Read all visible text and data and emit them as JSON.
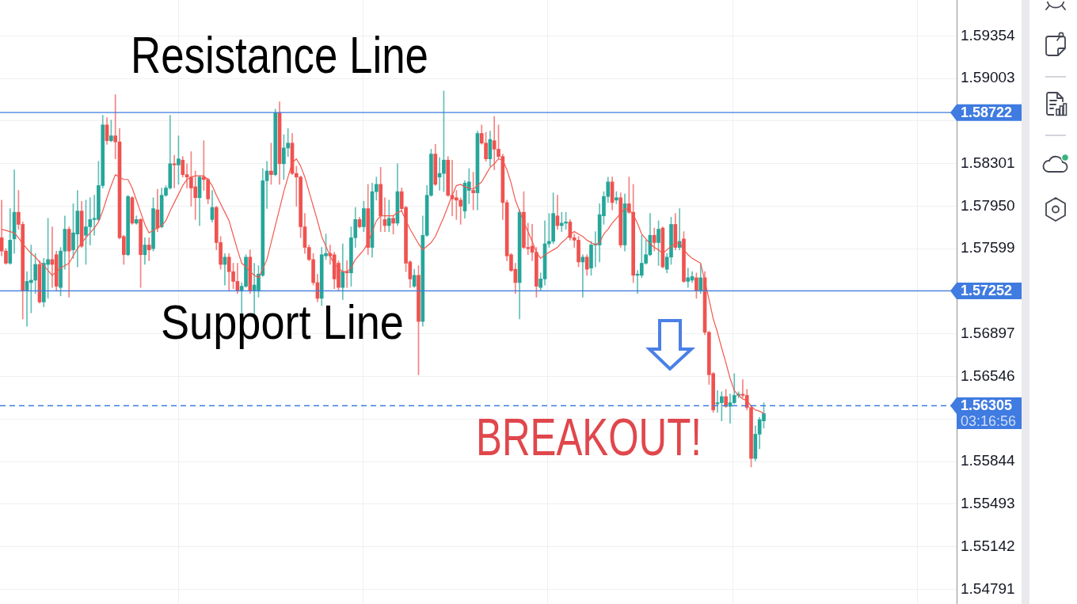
{
  "chart_data": {
    "type": "candlestick",
    "categories": [
      null,
      null,
      null,
      null,
      null,
      null,
      null,
      null,
      null,
      null,
      null,
      null,
      null,
      null,
      null,
      null,
      null,
      null,
      null,
      null,
      null,
      null,
      null,
      null,
      null,
      null,
      null,
      null,
      null,
      null,
      null,
      null,
      null,
      null,
      null,
      null,
      null,
      null,
      null,
      null,
      null,
      null,
      null,
      null,
      null,
      null,
      null,
      null,
      null,
      null,
      null,
      null,
      null,
      null,
      null,
      null,
      null,
      null,
      null,
      null,
      null,
      null,
      null,
      null,
      null,
      null,
      null,
      null,
      null,
      null,
      null,
      null,
      null,
      null,
      null,
      null,
      null,
      null,
      null,
      null,
      null,
      null,
      null,
      null,
      null,
      null,
      null,
      null,
      null,
      null,
      null,
      null,
      null,
      null,
      null,
      null,
      null,
      null,
      null,
      null,
      null,
      null,
      null,
      null,
      null,
      null,
      null,
      null,
      null,
      null,
      null,
      null,
      null,
      null,
      null,
      null,
      null,
      null,
      null,
      null,
      null,
      null,
      null,
      null,
      null,
      null,
      null,
      null,
      null,
      null,
      null,
      null,
      null,
      null,
      null,
      null,
      null,
      null,
      null,
      null,
      null,
      null,
      null,
      null,
      null,
      null,
      null,
      null,
      null,
      null,
      null,
      null,
      null,
      null,
      null,
      null,
      null,
      null,
      null,
      null,
      null,
      null,
      null,
      null,
      null,
      null,
      null,
      null,
      null,
      null,
      null,
      null,
      null,
      null,
      null,
      null,
      null,
      null,
      null,
      null,
      null,
      null
    ],
    "ohlc": [
      [
        1.5769,
        1.58,
        1.5754,
        1.5758
      ],
      [
        1.5758,
        1.576,
        1.5747,
        1.5748
      ],
      [
        1.5748,
        1.5793,
        1.5747,
        1.5767
      ],
      [
        1.5768,
        1.5825,
        1.5756,
        1.579
      ],
      [
        1.579,
        1.5808,
        1.5776,
        1.578
      ],
      [
        1.578,
        1.5782,
        1.5702,
        1.5725
      ],
      [
        1.5725,
        1.5741,
        1.5696,
        1.5733
      ],
      [
        1.5732,
        1.5763,
        1.5707,
        1.5734
      ],
      [
        1.5734,
        1.5756,
        1.5723,
        1.5747
      ],
      [
        1.5747,
        1.575,
        1.5715,
        1.5716
      ],
      [
        1.5716,
        1.5752,
        1.5712,
        1.5748
      ],
      [
        1.5747,
        1.5785,
        1.5719,
        1.5751
      ],
      [
        1.5751,
        1.5778,
        1.5728,
        1.5747
      ],
      [
        1.5755,
        1.5758,
        1.5725,
        1.5729
      ],
      [
        1.5728,
        1.5761,
        1.5721,
        1.5758
      ],
      [
        1.5758,
        1.5787,
        1.5743,
        1.5776
      ],
      [
        1.5776,
        1.5778,
        1.572,
        1.5758
      ],
      [
        1.5759,
        1.5797,
        1.5752,
        1.5773
      ],
      [
        1.5772,
        1.5808,
        1.5745,
        1.5791
      ],
      [
        1.5791,
        1.5799,
        1.5761,
        1.5762
      ],
      [
        1.5771,
        1.58,
        1.5747,
        1.5778
      ],
      [
        1.5778,
        1.5802,
        1.5763,
        1.5784
      ],
      [
        1.5784,
        1.5804,
        1.5771,
        1.5785
      ],
      [
        1.5784,
        1.5832,
        1.5783,
        1.5812
      ],
      [
        1.5812,
        1.587,
        1.581,
        1.5862
      ],
      [
        1.5862,
        1.5868,
        1.5846,
        1.5849
      ],
      [
        1.5849,
        1.5866,
        1.5848,
        1.5853
      ],
      [
        1.5853,
        1.5887,
        1.5834,
        1.5848
      ],
      [
        1.5848,
        1.5859,
        1.5768,
        1.5769
      ],
      [
        1.577,
        1.5771,
        1.5747,
        1.5755
      ],
      [
        1.5755,
        1.5804,
        1.5754,
        1.5803
      ],
      [
        1.5802,
        1.5803,
        1.578,
        1.5781
      ],
      [
        1.5781,
        1.5787,
        1.578,
        1.5784
      ],
      [
        1.5784,
        1.5785,
        1.5728,
        1.5755
      ],
      [
        1.5755,
        1.5769,
        1.5747,
        1.5763
      ],
      [
        1.5763,
        1.5769,
        1.575,
        1.5759
      ],
      [
        1.576,
        1.5802,
        1.5758,
        1.5793
      ],
      [
        1.5792,
        1.5809,
        1.5774,
        1.5777
      ],
      [
        1.5778,
        1.581,
        1.5777,
        1.5804
      ],
      [
        1.5804,
        1.5812,
        1.5803,
        1.581
      ],
      [
        1.581,
        1.587,
        1.5809,
        1.583
      ],
      [
        1.583,
        1.5837,
        1.581,
        1.5829
      ],
      [
        1.5829,
        1.5853,
        1.5813,
        1.5834
      ],
      [
        1.5833,
        1.5836,
        1.5819,
        1.5821
      ],
      [
        1.5821,
        1.583,
        1.581,
        1.5819
      ],
      [
        1.5819,
        1.584,
        1.5795,
        1.581
      ],
      [
        1.5811,
        1.5824,
        1.5784,
        1.5802
      ],
      [
        1.5802,
        1.582,
        1.5779,
        1.5819
      ],
      [
        1.5819,
        1.5849,
        1.5808,
        1.5817
      ],
      [
        1.5817,
        1.5818,
        1.5797,
        1.5801
      ],
      [
        1.5784,
        1.5808,
        1.5782,
        1.5794
      ],
      [
        1.5794,
        1.5795,
        1.5759,
        1.5765
      ],
      [
        1.5765,
        1.577,
        1.5743,
        1.5747
      ],
      [
        1.5747,
        1.5756,
        1.573,
        1.5753
      ],
      [
        1.5753,
        1.5756,
        1.5725,
        1.5741
      ],
      [
        1.5741,
        1.5748,
        1.5727,
        1.5733
      ],
      [
        1.5733,
        1.5748,
        1.5723,
        1.5725
      ],
      [
        1.5725,
        1.5732,
        1.5706,
        1.5729
      ],
      [
        1.5729,
        1.5755,
        1.5728,
        1.5753
      ],
      [
        1.5753,
        1.5759,
        1.5723,
        1.5725
      ],
      [
        1.5725,
        1.5748,
        1.5706,
        1.573
      ],
      [
        1.5725,
        1.5746,
        1.572,
        1.5739
      ],
      [
        1.5738,
        1.5826,
        1.5737,
        1.5816
      ],
      [
        1.5816,
        1.5832,
        1.5793,
        1.5824
      ],
      [
        1.5824,
        1.5847,
        1.5813,
        1.5821
      ],
      [
        1.5821,
        1.5875,
        1.582,
        1.5872
      ],
      [
        1.5872,
        1.5881,
        1.5813,
        1.583
      ],
      [
        1.583,
        1.5854,
        1.5817,
        1.5843
      ],
      [
        1.5843,
        1.5859,
        1.5836,
        1.5847
      ],
      [
        1.5847,
        1.5855,
        1.5821,
        1.5822
      ],
      [
        1.5822,
        1.5828,
        1.5795,
        1.5819
      ],
      [
        1.5819,
        1.582,
        1.5769,
        1.5778
      ],
      [
        1.5778,
        1.5789,
        1.5756,
        1.5761
      ],
      [
        1.5761,
        1.5763,
        1.575,
        1.5751
      ],
      [
        1.5751,
        1.5756,
        1.573,
        1.5732
      ],
      [
        1.5732,
        1.5739,
        1.5716,
        1.5719
      ],
      [
        1.5719,
        1.5761,
        1.5713,
        1.5755
      ],
      [
        1.5754,
        1.5772,
        1.5751,
        1.5756
      ],
      [
        1.5756,
        1.5763,
        1.5747,
        1.5754
      ],
      [
        1.5755,
        1.5757,
        1.5727,
        1.5735
      ],
      [
        1.5748,
        1.575,
        1.5725,
        1.5728
      ],
      [
        1.5728,
        1.5764,
        1.5718,
        1.5741
      ],
      [
        1.5741,
        1.575,
        1.5728,
        1.574
      ],
      [
        1.574,
        1.5778,
        1.5729,
        1.5769
      ],
      [
        1.5769,
        1.5794,
        1.5761,
        1.5784
      ],
      [
        1.5784,
        1.5786,
        1.5777,
        1.5778
      ],
      [
        1.5778,
        1.5799,
        1.5774,
        1.5793
      ],
      [
        1.5793,
        1.5813,
        1.5755,
        1.5761
      ],
      [
        1.5761,
        1.5814,
        1.5753,
        1.5807
      ],
      [
        1.5807,
        1.5819,
        1.58,
        1.5813
      ],
      [
        1.5813,
        1.5827,
        1.5774,
        1.5787
      ],
      [
        1.5784,
        1.5802,
        1.5774,
        1.5779
      ],
      [
        1.5779,
        1.58,
        1.5774,
        1.5785
      ],
      [
        1.5785,
        1.5787,
        1.5772,
        1.5781
      ],
      [
        1.5781,
        1.583,
        1.5779,
        1.5807
      ],
      [
        1.5807,
        1.581,
        1.5791,
        1.5793
      ],
      [
        1.5794,
        1.5795,
        1.5741,
        1.5748
      ],
      [
        1.5749,
        1.575,
        1.5728,
        1.5735
      ],
      [
        1.5729,
        1.5743,
        1.5728,
        1.5738
      ],
      [
        1.5738,
        1.5746,
        1.5656,
        1.57
      ],
      [
        1.57,
        1.5787,
        1.5696,
        1.5771
      ],
      [
        1.5771,
        1.5812,
        1.577,
        1.5804
      ],
      [
        1.5804,
        1.5842,
        1.5803,
        1.5838
      ],
      [
        1.5838,
        1.5846,
        1.5812,
        1.5813
      ],
      [
        1.5819,
        1.5835,
        1.5808,
        1.5822
      ],
      [
        1.5822,
        1.589,
        1.5807,
        1.5833
      ],
      [
        1.5833,
        1.5836,
        1.5803,
        1.5804
      ],
      [
        1.5804,
        1.5833,
        1.5787,
        1.5801
      ],
      [
        1.5802,
        1.5808,
        1.5784,
        1.58
      ],
      [
        1.58,
        1.5802,
        1.578,
        1.5795
      ],
      [
        1.5791,
        1.5816,
        1.5785,
        1.5814
      ],
      [
        1.5808,
        1.5826,
        1.5797,
        1.5815
      ],
      [
        1.5808,
        1.5823,
        1.5792,
        1.5806
      ],
      [
        1.5806,
        1.5857,
        1.5792,
        1.5855
      ],
      [
        1.5855,
        1.5862,
        1.5846,
        1.5847
      ],
      [
        1.5847,
        1.5856,
        1.5832,
        1.5834
      ],
      [
        1.5834,
        1.5857,
        1.5828,
        1.585
      ],
      [
        1.5849,
        1.5869,
        1.5825,
        1.5842
      ],
      [
        1.5842,
        1.5862,
        1.5834,
        1.5836
      ],
      [
        1.5836,
        1.5838,
        1.5784,
        1.5798
      ],
      [
        1.5798,
        1.58,
        1.575,
        1.5754
      ],
      [
        1.5755,
        1.5756,
        1.5741,
        1.5742
      ],
      [
        1.5743,
        1.5748,
        1.5723,
        1.5732
      ],
      [
        1.5732,
        1.5792,
        1.5702,
        1.579
      ],
      [
        1.579,
        1.5807,
        1.576,
        1.5761
      ],
      [
        1.5761,
        1.5781,
        1.5755,
        1.576
      ],
      [
        1.5762,
        1.578,
        1.575,
        1.5757
      ],
      [
        1.5757,
        1.5761,
        1.572,
        1.5729
      ],
      [
        1.5728,
        1.574,
        1.5725,
        1.5735
      ],
      [
        1.5735,
        1.5783,
        1.573,
        1.5764
      ],
      [
        1.5764,
        1.5789,
        1.5761,
        1.5766
      ],
      [
        1.5766,
        1.5806,
        1.5764,
        1.5789
      ],
      [
        1.5787,
        1.5804,
        1.5776,
        1.5779
      ],
      [
        1.5779,
        1.579,
        1.5774,
        1.5781
      ],
      [
        1.5781,
        1.579,
        1.5776,
        1.5782
      ],
      [
        1.5782,
        1.5784,
        1.5767,
        1.5769
      ],
      [
        1.5769,
        1.5772,
        1.5761,
        1.5767
      ],
      [
        1.5767,
        1.577,
        1.5745,
        1.5749
      ],
      [
        1.5749,
        1.5755,
        1.572,
        1.5753
      ],
      [
        1.5753,
        1.5755,
        1.5738,
        1.5743
      ],
      [
        1.5744,
        1.5766,
        1.5738,
        1.5763
      ],
      [
        1.5763,
        1.5774,
        1.5745,
        1.5764
      ],
      [
        1.5763,
        1.5797,
        1.5749,
        1.5788
      ],
      [
        1.5787,
        1.5807,
        1.578,
        1.5803
      ],
      [
        1.5803,
        1.5819,
        1.5798,
        1.5815
      ],
      [
        1.5815,
        1.5819,
        1.5792,
        1.5798
      ],
      [
        1.58,
        1.5807,
        1.5797,
        1.5802
      ],
      [
        1.5802,
        1.5806,
        1.5761,
        1.5763
      ],
      [
        1.5763,
        1.5805,
        1.5758,
        1.5797
      ],
      [
        1.5797,
        1.5819,
        1.5789,
        1.579
      ],
      [
        1.579,
        1.5813,
        1.5732,
        1.5738
      ],
      [
        1.5738,
        1.5742,
        1.5723,
        1.5739
      ],
      [
        1.5738,
        1.5771,
        1.5736,
        1.5748
      ],
      [
        1.5748,
        1.5767,
        1.5747,
        1.5755
      ],
      [
        1.5755,
        1.5789,
        1.5754,
        1.5771
      ],
      [
        1.5771,
        1.5777,
        1.5758,
        1.5765
      ],
      [
        1.5765,
        1.5783,
        1.5746,
        1.5776
      ],
      [
        1.5777,
        1.5778,
        1.5744,
        1.5745
      ],
      [
        1.5743,
        1.5756,
        1.574,
        1.5753
      ],
      [
        1.5753,
        1.5786,
        1.5747,
        1.578
      ],
      [
        1.578,
        1.5789,
        1.5759,
        1.5761
      ],
      [
        1.5761,
        1.5793,
        1.5759,
        1.5766
      ],
      [
        1.5768,
        1.5774,
        1.5732,
        1.5733
      ],
      [
        1.5733,
        1.5744,
        1.5728,
        1.5736
      ],
      [
        1.5734,
        1.5741,
        1.5732,
        1.5737
      ],
      [
        1.5736,
        1.574,
        1.5719,
        1.5725
      ],
      [
        1.5725,
        1.5747,
        1.5723,
        1.5736
      ],
      [
        1.5736,
        1.5741,
        1.5689,
        1.5691
      ],
      [
        1.5691,
        1.5692,
        1.5648,
        1.5656
      ],
      [
        1.5657,
        1.5658,
        1.5625,
        1.5627
      ],
      [
        1.5632,
        1.5643,
        1.5625,
        1.5633
      ],
      [
        1.5633,
        1.5642,
        1.5618,
        1.5638
      ],
      [
        1.5638,
        1.5644,
        1.5629,
        1.563
      ],
      [
        1.563,
        1.564,
        1.5616,
        1.5633
      ],
      [
        1.5633,
        1.5657,
        1.5632,
        1.5639
      ],
      [
        1.5639,
        1.5642,
        1.5637,
        1.564
      ],
      [
        1.564,
        1.5652,
        1.5637,
        1.5639
      ],
      [
        1.5639,
        1.5644,
        1.5627,
        1.5629
      ],
      [
        1.5629,
        1.5631,
        1.558,
        1.5587
      ],
      [
        1.5587,
        1.5614,
        1.5585,
        1.5607
      ],
      [
        1.5607,
        1.5621,
        1.5595,
        1.5619
      ],
      [
        1.5618,
        1.5633,
        1.5612,
        1.5624
      ]
    ],
    "colors": [
      "#ef5350",
      "#ef5350",
      "#26a69a",
      "#26a69a",
      "#ef5350",
      "#ef5350",
      "#26a69a",
      "#26a69a",
      "#26a69a",
      "#ef5350",
      "#26a69a",
      "#26a69a",
      "#ef5350",
      "#ef5350",
      "#26a69a",
      "#26a69a",
      "#ef5350",
      "#26a69a",
      "#26a69a",
      "#ef5350",
      "#26a69a",
      "#26a69a",
      "#26a69a",
      "#26a69a",
      "#26a69a",
      "#ef5350",
      "#26a69a",
      "#ef5350",
      "#ef5350",
      "#ef5350",
      "#26a69a",
      "#ef5350",
      "#26a69a",
      "#ef5350",
      "#26a69a",
      "#ef5350",
      "#26a69a",
      "#ef5350",
      "#26a69a",
      "#26a69a",
      "#26a69a",
      "#ef5350",
      "#26a69a",
      "#ef5350",
      "#ef5350",
      "#ef5350",
      "#ef5350",
      "#26a69a",
      "#ef5350",
      "#ef5350",
      "#26a69a",
      "#ef5350",
      "#ef5350",
      "#26a69a",
      "#ef5350",
      "#ef5350",
      "#ef5350",
      "#26a69a",
      "#26a69a",
      "#ef5350",
      "#26a69a",
      "#26a69a",
      "#26a69a",
      "#26a69a",
      "#ef5350",
      "#26a69a",
      "#ef5350",
      "#26a69a",
      "#26a69a",
      "#ef5350",
      "#ef5350",
      "#ef5350",
      "#ef5350",
      "#ef5350",
      "#ef5350",
      "#ef5350",
      "#26a69a",
      "#26a69a",
      "#ef5350",
      "#ef5350",
      "#ef5350",
      "#26a69a",
      "#ef5350",
      "#26a69a",
      "#26a69a",
      "#ef5350",
      "#26a69a",
      "#ef5350",
      "#26a69a",
      "#26a69a",
      "#ef5350",
      "#ef5350",
      "#26a69a",
      "#ef5350",
      "#26a69a",
      "#ef5350",
      "#ef5350",
      "#ef5350",
      "#26a69a",
      "#ef5350",
      "#26a69a",
      "#26a69a",
      "#26a69a",
      "#ef5350",
      "#26a69a",
      "#26a69a",
      "#ef5350",
      "#ef5350",
      "#ef5350",
      "#ef5350",
      "#26a69a",
      "#26a69a",
      "#ef5350",
      "#26a69a",
      "#ef5350",
      "#ef5350",
      "#26a69a",
      "#ef5350",
      "#ef5350",
      "#ef5350",
      "#ef5350",
      "#ef5350",
      "#ef5350",
      "#26a69a",
      "#ef5350",
      "#ef5350",
      "#ef5350",
      "#ef5350",
      "#26a69a",
      "#26a69a",
      "#26a69a",
      "#26a69a",
      "#ef5350",
      "#26a69a",
      "#26a69a",
      "#ef5350",
      "#ef5350",
      "#ef5350",
      "#26a69a",
      "#ef5350",
      "#26a69a",
      "#26a69a",
      "#26a69a",
      "#26a69a",
      "#26a69a",
      "#ef5350",
      "#26a69a",
      "#ef5350",
      "#26a69a",
      "#ef5350",
      "#ef5350",
      "#26a69a",
      "#26a69a",
      "#26a69a",
      "#26a69a",
      "#ef5350",
      "#26a69a",
      "#ef5350",
      "#26a69a",
      "#26a69a",
      "#ef5350",
      "#26a69a",
      "#ef5350",
      "#26a69a",
      "#26a69a",
      "#ef5350",
      "#26a69a",
      "#ef5350",
      "#ef5350",
      "#ef5350",
      "#26a69a",
      "#26a69a",
      "#ef5350",
      "#26a69a",
      "#26a69a",
      "#26a69a",
      "#ef5350",
      "#ef5350",
      "#ef5350",
      "#26a69a",
      "#26a69a",
      "#26a69a"
    ],
    "series": [
      {
        "type": "line",
        "color": "#f2594f",
        "values": [
          1.5776,
          1.5775,
          1.5774,
          1.5773,
          1.5769,
          1.5764,
          1.576,
          1.5756,
          1.5753,
          1.5749,
          1.5746,
          1.5742,
          1.5738,
          1.5741,
          1.5744,
          1.5746,
          1.5748,
          1.5754,
          1.576,
          1.5765,
          1.5769,
          1.5773,
          1.5777,
          1.5782,
          1.5791,
          1.5802,
          1.5812,
          1.5821,
          1.5819,
          1.5817,
          1.5817,
          1.581,
          1.58,
          1.579,
          1.578,
          1.5773,
          1.5775,
          1.5777,
          1.5779,
          1.5783,
          1.5791,
          1.5798,
          1.5805,
          1.5812,
          1.5817,
          1.5819,
          1.582,
          1.582,
          1.582,
          1.5817,
          1.5812,
          1.5804,
          1.5797,
          1.579,
          1.5783,
          1.5771,
          1.5759,
          1.5748,
          1.5745,
          1.5741,
          1.5738,
          1.5736,
          1.5743,
          1.5751,
          1.5765,
          1.5779,
          1.5793,
          1.5807,
          1.5819,
          1.5831,
          1.5834,
          1.5828,
          1.5819,
          1.5807,
          1.5795,
          1.5783,
          1.577,
          1.5762,
          1.5754,
          1.5747,
          1.5744,
          1.5741,
          1.5741,
          1.5744,
          1.5751,
          1.5755,
          1.5759,
          1.5765,
          1.5774,
          1.5783,
          1.5787,
          1.5787,
          1.5787,
          1.5787,
          1.579,
          1.5791,
          1.5783,
          1.5776,
          1.577,
          1.5764,
          1.5759,
          1.5762,
          1.5765,
          1.577,
          1.5778,
          1.5786,
          1.5795,
          1.5804,
          1.5812,
          1.5813,
          1.5811,
          1.581,
          1.5809,
          1.5812,
          1.5815,
          1.5821,
          1.5827,
          1.583,
          1.5834,
          1.5833,
          1.5825,
          1.5814,
          1.58,
          1.5791,
          1.5782,
          1.5774,
          1.5766,
          1.5757,
          1.5752,
          1.5755,
          1.5757,
          1.5759,
          1.5761,
          1.5765,
          1.5768,
          1.5772,
          1.5774,
          1.5772,
          1.577,
          1.5767,
          1.5765,
          1.5763,
          1.5765,
          1.5772,
          1.5776,
          1.5781,
          1.5785,
          1.5789,
          1.5793,
          1.5792,
          1.5788,
          1.5781,
          1.5772,
          1.5768,
          1.5764,
          1.5761,
          1.5759,
          1.5756,
          1.5759,
          1.5762,
          1.5764,
          1.5765,
          1.5759,
          1.5755,
          1.5752,
          1.575,
          1.5748,
          1.5733,
          1.5718,
          1.5702,
          1.5691,
          1.5678,
          1.5666,
          1.5653,
          1.5643,
          1.5639,
          1.5636,
          1.5635,
          1.563,
          1.5627,
          1.5626,
          1.5624
        ]
      }
    ],
    "ylim": [
      1.5467,
      1.5965
    ],
    "yticks": [
      1.54791,
      1.55142,
      1.55493,
      1.55844,
      {
        "value": 1.56195,
        "label": null
      },
      1.56546,
      1.56897,
      {
        "value": 1.57248,
        "label": null
      },
      1.57599,
      {
        "value": 1.5795,
        "label": "1.57950"
      },
      1.58301,
      {
        "value": 1.58652,
        "label": null
      },
      1.59003,
      1.59354
    ],
    "grid": true,
    "tick_labels": "y",
    "ref_lines": [
      {
        "axis": "y",
        "value": 1.58722,
        "label": "1.58722",
        "color": "#3f7be0"
      },
      {
        "axis": "y",
        "value": 1.57252,
        "label": "1.57252",
        "color": "#3f7be0"
      },
      {
        "axis": "y",
        "value": 1.56305,
        "label": "1.56305",
        "color": "#3f7be0",
        "line_style": "dashed"
      }
    ],
    "annotations": [
      "Resistance Line",
      "Support Line",
      "BREAKOUT!",
      "03:16:56"
    ]
  }
}
